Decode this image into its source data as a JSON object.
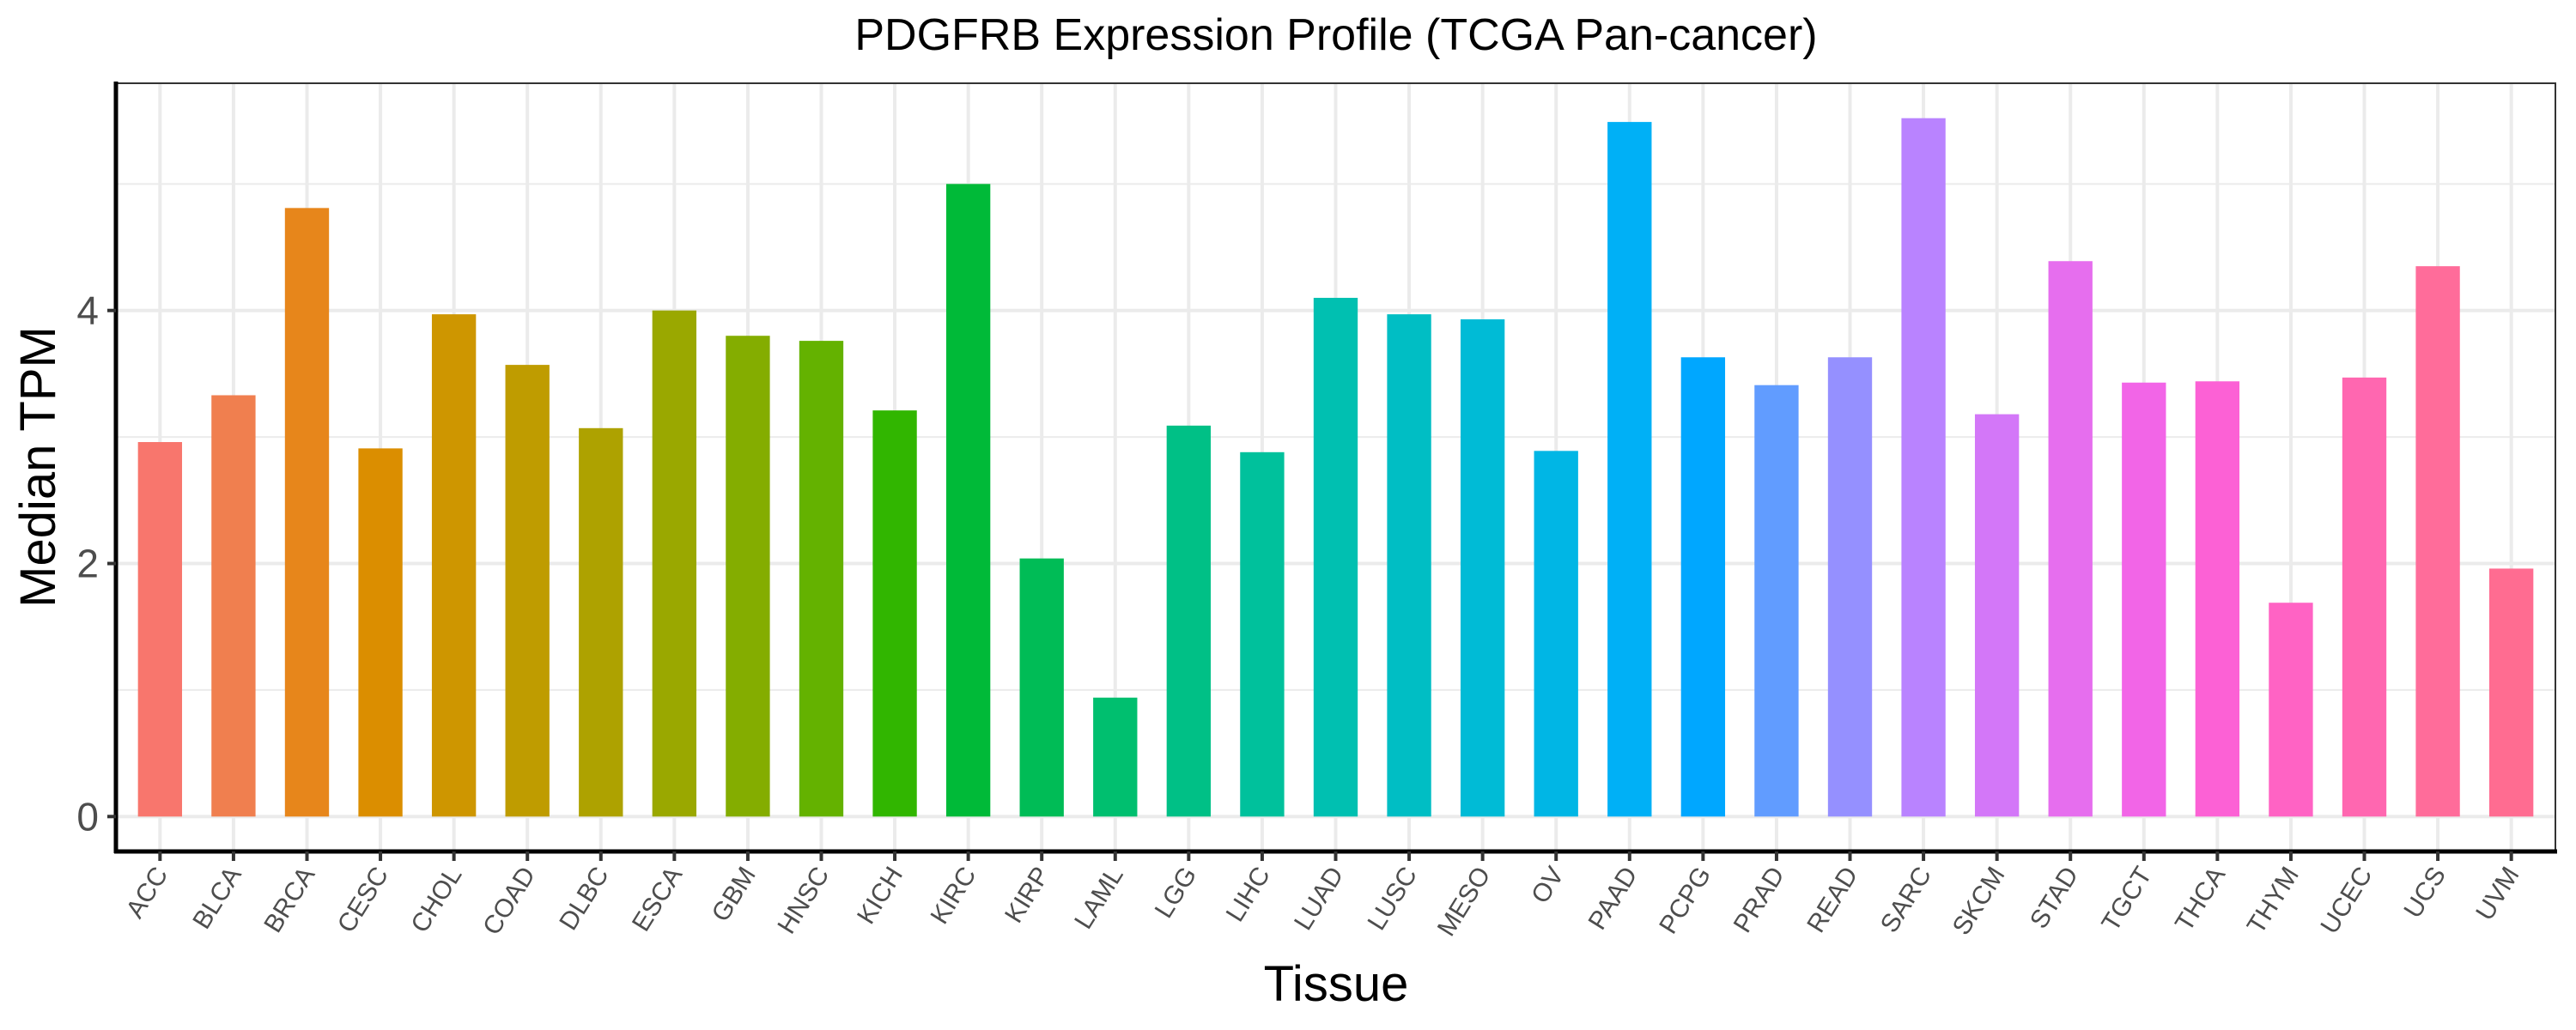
{
  "chart_data": {
    "type": "bar",
    "title": "PDGFRB Expression Profile (TCGA Pan-cancer)",
    "xlabel": "Tissue",
    "ylabel": "Median TPM",
    "ylim": [
      0,
      5.52
    ],
    "yticks": [
      0,
      2,
      4
    ],
    "ytick_labels": [
      "0",
      "2",
      "4"
    ],
    "grid": true,
    "legend": "none",
    "categories": [
      "ACC",
      "BLCA",
      "BRCA",
      "CESC",
      "CHOL",
      "COAD",
      "DLBC",
      "ESCA",
      "GBM",
      "HNSC",
      "KICH",
      "KIRC",
      "KIRP",
      "LAML",
      "LGG",
      "LIHC",
      "LUAD",
      "LUSC",
      "MESO",
      "OV",
      "PAAD",
      "PCPG",
      "PRAD",
      "READ",
      "SARC",
      "SKCM",
      "STAD",
      "TGCT",
      "THCA",
      "THYM",
      "UCEC",
      "UCS",
      "UVM"
    ],
    "values": [
      2.96,
      3.33,
      4.81,
      2.91,
      3.97,
      3.57,
      3.07,
      4.0,
      3.8,
      3.76,
      3.21,
      5.0,
      2.04,
      0.94,
      3.09,
      2.88,
      4.1,
      3.97,
      3.93,
      2.89,
      5.49,
      3.63,
      3.41,
      3.63,
      5.52,
      3.18,
      4.39,
      3.43,
      3.44,
      1.69,
      3.47,
      4.35,
      1.96
    ],
    "colors": [
      "#F8766D",
      "#F07F4F",
      "#E7861B",
      "#DB8E00",
      "#CE9600",
      "#BF9C00",
      "#AEA200",
      "#9AA800",
      "#84AD00",
      "#64B200",
      "#31B600",
      "#00BA38",
      "#00BC56",
      "#00BF6F",
      "#00C086",
      "#00C19C",
      "#00C0B1",
      "#00BEC4",
      "#00BBD6",
      "#00B6E5",
      "#00B0F6",
      "#00A7FF",
      "#619CFF",
      "#9590FF",
      "#B983FF",
      "#D377F8",
      "#E66EEE",
      "#F265E7",
      "#FC61D5",
      "#FF63C4",
      "#FF67B0",
      "#FF6C9A",
      "#FF6C91"
    ]
  }
}
